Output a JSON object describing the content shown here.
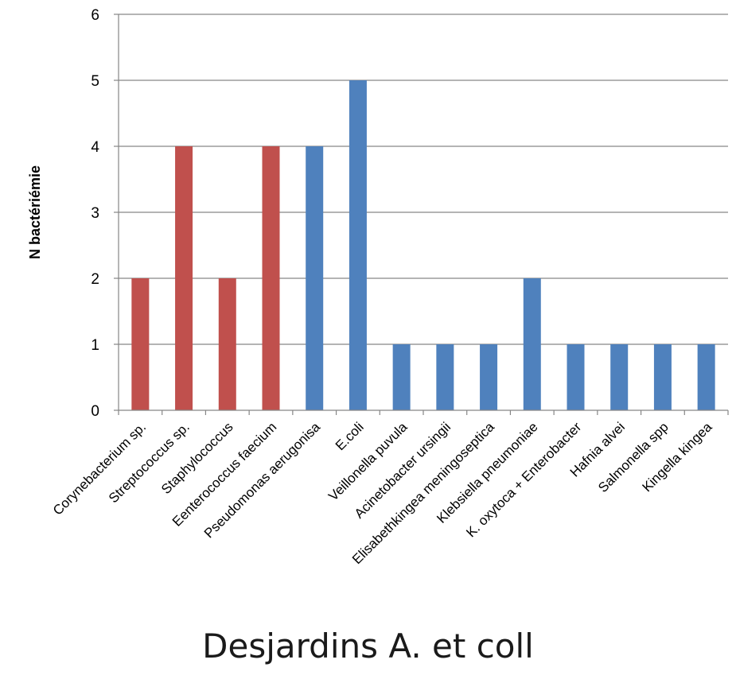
{
  "chart_data": {
    "type": "bar",
    "ylabel": "N bactériémie",
    "xlabel": "",
    "ylim": [
      0,
      6
    ],
    "yticks": [
      0,
      1,
      2,
      3,
      4,
      5,
      6
    ],
    "grid": true,
    "legend": "none",
    "categories": [
      "Corynebacterium sp.",
      "Streptococcus sp.",
      "Staphylococcus",
      "Eenterococcus faecium",
      "Pseudomonas aerugonisa",
      "E.coli",
      "Veillonella puvula",
      "Acinetobacter ursingii",
      "Elisabethkingea meningoseptica",
      "Klebsiella pneumoniae",
      "K. oxytoca + Enterobacter",
      "Hafnia alvei",
      "Salmonella spp",
      "Kingella kingea"
    ],
    "values": [
      2,
      4,
      2,
      4,
      4,
      5,
      1,
      1,
      1,
      2,
      1,
      1,
      1,
      1
    ],
    "bar_groups": [
      "red",
      "red",
      "red",
      "red",
      "blue",
      "blue",
      "blue",
      "blue",
      "blue",
      "blue",
      "blue",
      "blue",
      "blue",
      "blue"
    ],
    "colors": {
      "red": "#c0504d",
      "blue": "#4f81bd",
      "grid": "#868686",
      "axis": "#868686"
    }
  },
  "caption": "Desjardins A. et coll"
}
